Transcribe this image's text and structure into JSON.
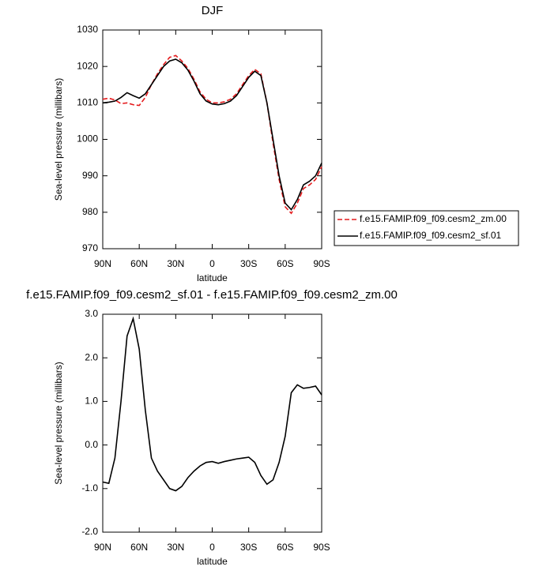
{
  "chart_data": [
    {
      "type": "line",
      "title": "DJF",
      "xlabel": "latitude",
      "ylabel": "Sea-level pressure (millibars)",
      "x": [
        90,
        85,
        80,
        75,
        70,
        65,
        60,
        55,
        50,
        45,
        40,
        35,
        30,
        25,
        20,
        15,
        10,
        5,
        0,
        -5,
        -10,
        -15,
        -20,
        -25,
        -30,
        -35,
        -40,
        -45,
        -50,
        -55,
        -60,
        -65,
        -70,
        -75,
        -80,
        -85,
        -90
      ],
      "xlim": [
        90,
        -90
      ],
      "xticks": [
        {
          "value": 90,
          "label": "90N"
        },
        {
          "value": 60,
          "label": "60N"
        },
        {
          "value": 30,
          "label": "30N"
        },
        0,
        {
          "value": -30,
          "label": "30S"
        },
        {
          "value": -60,
          "label": "60S"
        },
        {
          "value": -90,
          "label": "90S"
        }
      ],
      "ylim": [
        970,
        1030
      ],
      "yticks": [
        970,
        980,
        990,
        1000,
        1010,
        1020,
        1030
      ],
      "legend": "right",
      "series": [
        {
          "name": "f.e15.FAMIP.f09_f09.cesm2_zm.00",
          "color": "#e41a1c",
          "style": "dashed",
          "values": [
            1011,
            1011.3,
            1010.8,
            1009.8,
            1010,
            1009.5,
            1009.3,
            1011.5,
            1015,
            1018,
            1020.5,
            1022.5,
            1023,
            1021.5,
            1019.5,
            1016.5,
            1013,
            1011,
            1010,
            1010,
            1010.3,
            1011,
            1012.5,
            1015,
            1017.5,
            1019.2,
            1018,
            1010,
            999,
            989,
            981.5,
            979.7,
            982.5,
            986.5,
            987.5,
            989,
            992.5
          ]
        },
        {
          "name": "f.e15.FAMIP.f09_f09.cesm2_sf.01",
          "color": "#000000",
          "style": "solid",
          "values": [
            1010,
            1010.2,
            1010.5,
            1011.5,
            1012.8,
            1012,
            1011.3,
            1012.5,
            1015,
            1017.5,
            1020,
            1021.5,
            1022,
            1021,
            1019,
            1016,
            1012.5,
            1010.5,
            1009.7,
            1009.5,
            1009.8,
            1010.5,
            1012,
            1014.5,
            1017,
            1018.7,
            1017.5,
            1010,
            1000,
            990,
            982.5,
            980.7,
            983.5,
            987.5,
            988.5,
            990,
            993.5
          ]
        }
      ]
    },
    {
      "type": "line",
      "title": "f.e15.FAMIP.f09_f09.cesm2_sf.01 - f.e15.FAMIP.f09_f09.cesm2_zm.00",
      "xlabel": "latitude",
      "ylabel": "Sea-level pressure (millibars)",
      "x": [
        90,
        85,
        80,
        75,
        70,
        65,
        60,
        55,
        50,
        45,
        40,
        35,
        30,
        25,
        20,
        15,
        10,
        5,
        0,
        -5,
        -10,
        -15,
        -20,
        -25,
        -30,
        -35,
        -40,
        -45,
        -50,
        -55,
        -60,
        -65,
        -70,
        -75,
        -80,
        -85,
        -90
      ],
      "xlim": [
        90,
        -90
      ],
      "xticks": [
        {
          "value": 90,
          "label": "90N"
        },
        {
          "value": 60,
          "label": "60N"
        },
        {
          "value": 30,
          "label": "30N"
        },
        0,
        {
          "value": -30,
          "label": "30S"
        },
        {
          "value": -60,
          "label": "60S"
        },
        {
          "value": -90,
          "label": "90S"
        }
      ],
      "ylim": [
        -2,
        3
      ],
      "yticks": [
        {
          "value": -2,
          "label": "-2.0"
        },
        {
          "value": -1,
          "label": "-1.0"
        },
        {
          "value": 0,
          "label": "0.0"
        },
        {
          "value": 1,
          "label": "1.0"
        },
        {
          "value": 2,
          "label": "2.0"
        },
        {
          "value": 3,
          "label": "3.0"
        }
      ],
      "series": [
        {
          "color": "#000000",
          "style": "solid",
          "values": [
            -0.85,
            -0.88,
            -0.3,
            1.0,
            2.5,
            2.9,
            2.2,
            0.8,
            -0.3,
            -0.6,
            -0.8,
            -1.0,
            -1.05,
            -0.95,
            -0.75,
            -0.6,
            -0.48,
            -0.4,
            -0.38,
            -0.42,
            -0.38,
            -0.35,
            -0.32,
            -0.3,
            -0.28,
            -0.4,
            -0.7,
            -0.9,
            -0.8,
            -0.4,
            0.2,
            1.2,
            1.38,
            1.3,
            1.32,
            1.35,
            1.15
          ]
        }
      ]
    }
  ]
}
